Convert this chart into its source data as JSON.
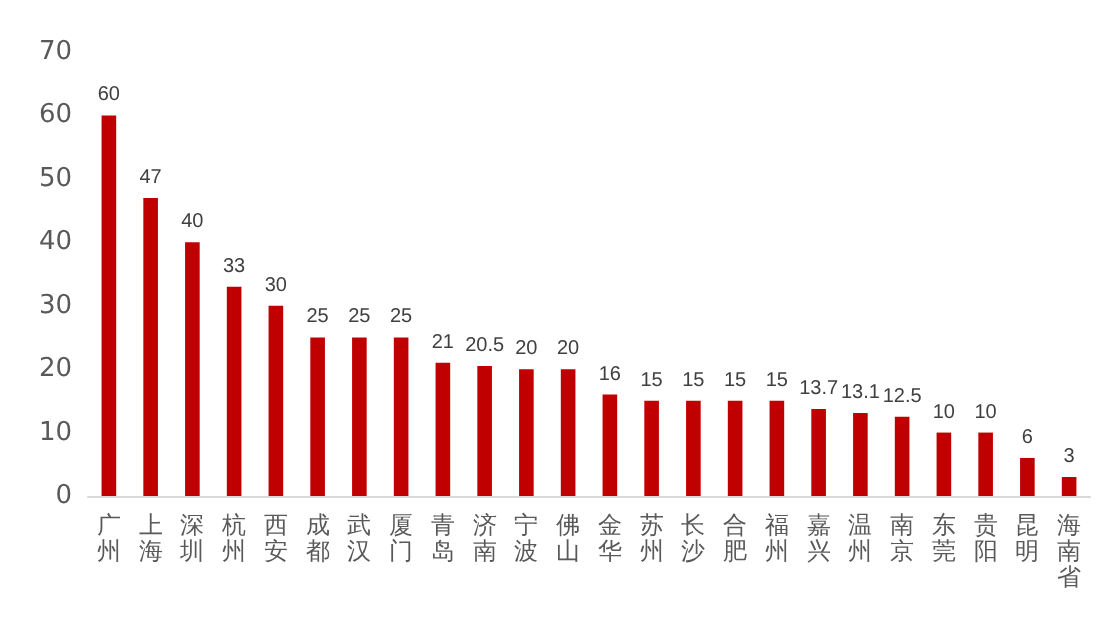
{
  "chart_data": {
    "type": "bar",
    "categories": [
      "广州",
      "上海",
      "深圳",
      "杭州",
      "西安",
      "成都",
      "武汉",
      "厦门",
      "青岛",
      "济南",
      "宁波",
      "佛山",
      "金华",
      "苏州",
      "长沙",
      "合肥",
      "福州",
      "嘉兴",
      "温州",
      "南京",
      "东莞",
      "贵阳",
      "昆明",
      "海南省"
    ],
    "values": [
      60,
      47,
      40,
      33,
      30,
      25,
      25,
      25,
      21,
      20.5,
      20,
      20,
      16,
      15,
      15,
      15,
      15,
      13.7,
      13.1,
      12.5,
      10,
      10,
      6,
      3
    ],
    "color": "#c00000",
    "ylim": [
      0,
      70
    ],
    "yticks": [
      0,
      10,
      20,
      30,
      40,
      50,
      60,
      70
    ],
    "grid": false,
    "data_labels": true
  }
}
